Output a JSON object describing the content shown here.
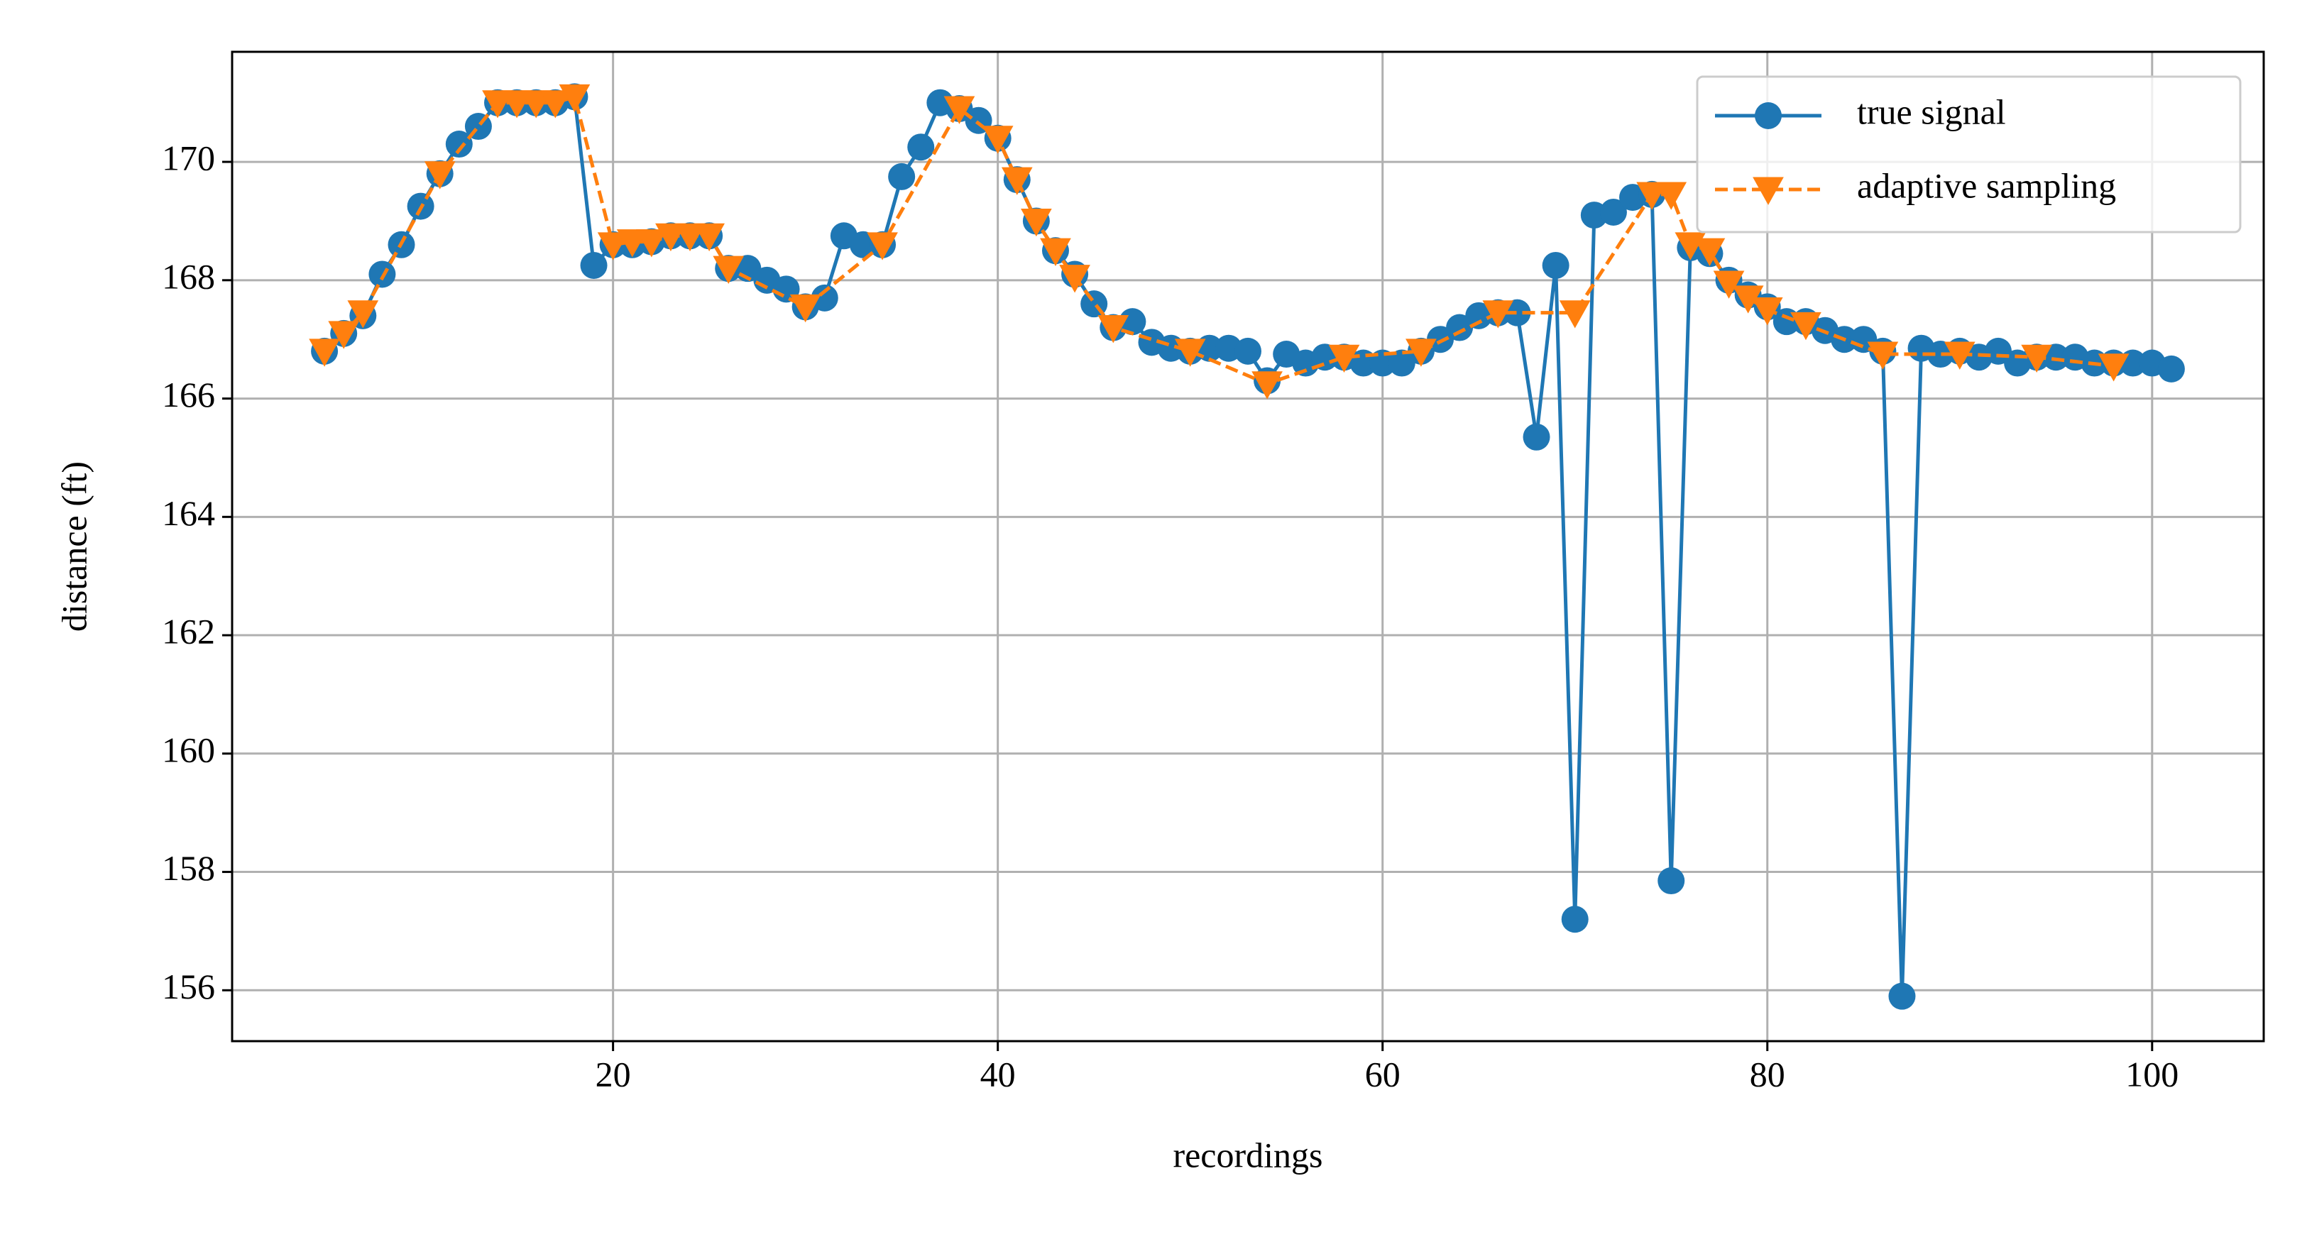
{
  "chart_data": {
    "type": "line",
    "xlabel": "recordings",
    "ylabel": "distance (ft)",
    "xlim": [
      0.2,
      105.8
    ],
    "ylim": [
      155.14,
      171.86
    ],
    "xticks": [
      20,
      40,
      60,
      80,
      100
    ],
    "yticks": [
      156,
      158,
      160,
      162,
      164,
      166,
      168,
      170
    ],
    "grid": true,
    "legend": "upper right",
    "series": [
      {
        "name": "true signal",
        "color": "#1f77b4",
        "marker": "circle",
        "linestyle": "solid",
        "x": [
          5,
          6,
          7,
          8,
          9,
          10,
          11,
          12,
          13,
          14,
          15,
          16,
          17,
          18,
          19,
          20,
          21,
          22,
          23,
          24,
          25,
          26,
          27,
          28,
          29,
          30,
          31,
          32,
          33,
          34,
          35,
          36,
          37,
          38,
          39,
          40,
          41,
          42,
          43,
          44,
          45,
          46,
          47,
          48,
          49,
          50,
          51,
          52,
          53,
          54,
          55,
          56,
          57,
          58,
          59,
          60,
          61,
          62,
          63,
          64,
          65,
          66,
          67,
          68,
          69,
          70,
          71,
          72,
          73,
          74,
          75,
          76,
          77,
          78,
          79,
          80,
          81,
          82,
          83,
          84,
          85,
          86,
          87,
          88,
          89,
          90,
          91,
          92,
          93,
          94,
          95,
          96,
          97,
          98,
          99,
          100,
          101
        ],
        "values": [
          166.8,
          167.1,
          167.4,
          168.1,
          168.6,
          169.25,
          169.8,
          170.3,
          170.6,
          171.0,
          171.0,
          171.0,
          171.0,
          171.1,
          168.25,
          168.6,
          168.6,
          168.65,
          168.75,
          168.75,
          168.75,
          168.2,
          168.2,
          168.0,
          167.85,
          167.55,
          167.7,
          168.75,
          168.6,
          168.6,
          169.75,
          170.25,
          171.0,
          170.9,
          170.7,
          170.4,
          169.7,
          169.0,
          168.5,
          168.1,
          167.6,
          167.2,
          167.3,
          166.95,
          166.85,
          166.8,
          166.85,
          166.85,
          166.8,
          166.3,
          166.75,
          166.6,
          166.7,
          166.7,
          166.6,
          166.6,
          166.6,
          166.8,
          167.0,
          167.2,
          167.4,
          167.45,
          167.45,
          165.35,
          168.25,
          157.2,
          169.1,
          169.15,
          169.4,
          169.45,
          157.85,
          168.55,
          168.45,
          168.0,
          167.75,
          167.55,
          167.3,
          167.3,
          167.15,
          167.0,
          167.0,
          166.8,
          155.9,
          166.85,
          166.75,
          166.8,
          166.7,
          166.8,
          166.6,
          166.7,
          166.7,
          166.7,
          166.6,
          166.6,
          166.6,
          166.6,
          166.5
        ]
      },
      {
        "name": "adaptive sampling",
        "color": "#ff7f0e",
        "marker": "triangle-down",
        "linestyle": "dashed",
        "x": [
          5,
          6,
          7,
          11,
          14,
          15,
          16,
          17,
          18,
          20,
          21,
          22,
          23,
          24,
          25,
          26,
          30,
          34,
          38,
          40,
          41,
          42,
          43,
          44,
          46,
          50,
          54,
          58,
          62,
          66,
          70,
          74,
          75,
          76,
          77,
          78,
          79,
          80,
          82,
          86,
          90,
          94,
          98
        ],
        "values": [
          166.8,
          167.1,
          167.45,
          169.8,
          171.0,
          171.0,
          171.0,
          171.0,
          171.1,
          168.6,
          168.65,
          168.65,
          168.75,
          168.75,
          168.75,
          168.2,
          167.55,
          168.6,
          170.9,
          170.4,
          169.7,
          169.0,
          168.5,
          168.05,
          167.2,
          166.8,
          166.25,
          166.7,
          166.8,
          167.45,
          167.45,
          169.45,
          169.45,
          168.6,
          168.5,
          167.95,
          167.7,
          167.5,
          167.25,
          166.75,
          166.75,
          166.7,
          166.55
        ]
      }
    ]
  }
}
